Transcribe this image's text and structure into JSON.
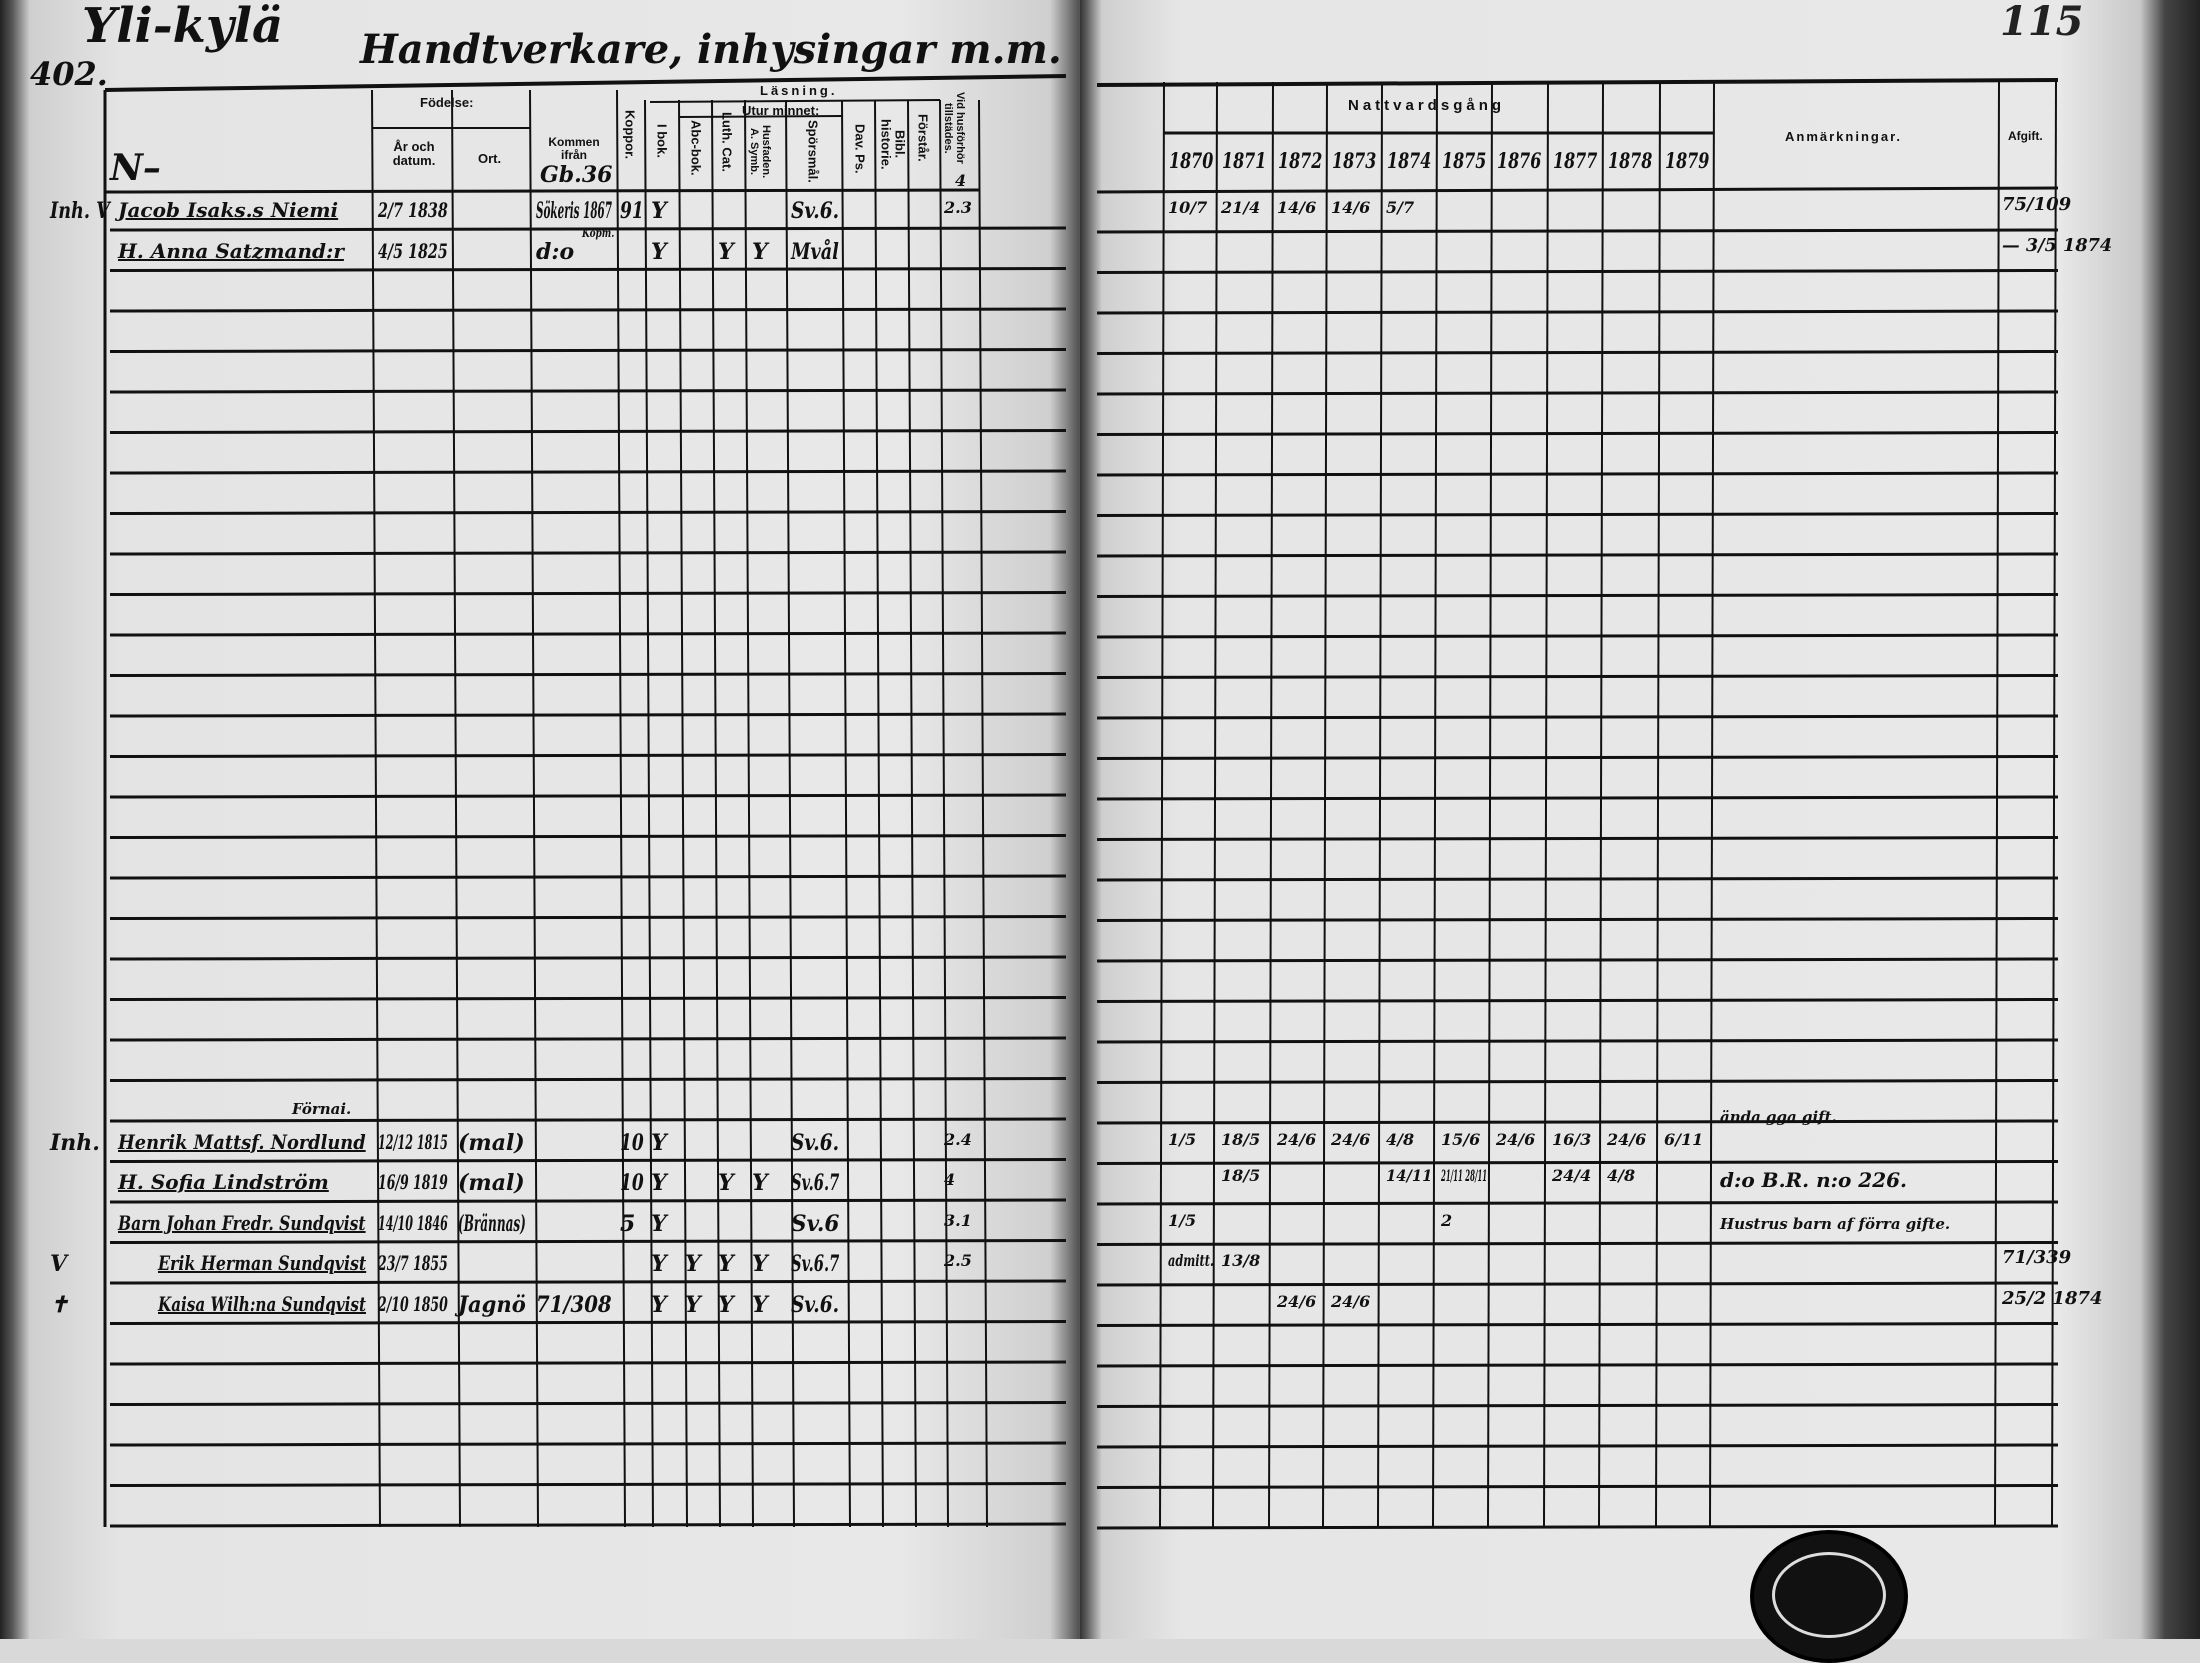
{
  "left_page": {
    "page_number": "402.",
    "village": "Yli-kylä",
    "title": "Handtverkare, inhysingar m.m.",
    "headers": {
      "fodelse": "Födelse:",
      "ar_och_datum": "År och datum.",
      "ort": "Ort.",
      "kommen_ifran": "Kommen ifrån",
      "koppor": "Koppor.",
      "lasning": "Läsning.",
      "utur_minnet": "Utur minnet:",
      "i_bok": "I bok.",
      "abc_bok": "Abc-bok.",
      "luth_cat": "Luth. Cat.",
      "husf_symb": "Husfaden. A. Symb.",
      "sporsmal": "Spörsmål.",
      "dav_ps": "Dav. Ps.",
      "bibl_historie": "Bibl. historie.",
      "forstar": "Förstår.",
      "vid_husforhor": "Vid husförhör tillstädes."
    },
    "section_mark": "N–",
    "section_ref": "Gb.36",
    "section_tillstades": "4",
    "fornamn_note": "Förnai.",
    "entries": [
      {
        "margin": "Inh. V",
        "name": "Jacob Isaks.s Niemi",
        "birth": "2/7 1838",
        "ort": "",
        "kommen": "Sökeris 1867",
        "kommen_note": "Kopm.",
        "koppor": "91",
        "i_bok": "Y",
        "abc": "",
        "luth": "",
        "husf": "",
        "spors": "Sv.6.",
        "tillst": "2.3"
      },
      {
        "margin": "",
        "name": "H. Anna Satzmand:r",
        "birth": "4/5 1825",
        "ort": "",
        "kommen": "d:o",
        "kommen_note": "",
        "koppor": "",
        "i_bok": "Y",
        "abc": "",
        "luth": "Y",
        "husf": "Y",
        "spors": "Mvål",
        "tillst": ""
      },
      {
        "margin": "Inh.",
        "name": "Henrik Mattsf. Nordlund",
        "birth": "12/12 1815",
        "ort": "(mal)",
        "kommen": "",
        "kommen_note": "",
        "koppor": "10",
        "i_bok": "Y",
        "abc": "",
        "luth": "",
        "husf": "",
        "spors": "Sv.6.",
        "tillst": "2.4"
      },
      {
        "margin": "",
        "name": "H. Sofia Lindström",
        "birth": "16/9 1819",
        "ort": "(mal)",
        "kommen": "",
        "kommen_note": "",
        "koppor": "10",
        "i_bok": "Y",
        "abc": "",
        "luth": "Y",
        "husf": "Y",
        "spors": "Sv.6.7",
        "tillst": "4"
      },
      {
        "margin": "",
        "name": "Barn Johan Fredr. Sundqvist",
        "birth": "14/10 1846",
        "ort": "(Brännas)",
        "kommen": "",
        "kommen_note": "",
        "koppor": "5",
        "i_bok": "Y",
        "abc": "",
        "luth": "",
        "husf": "",
        "spors": "Sv.6",
        "tillst": "3.1"
      },
      {
        "margin": "V",
        "name": "Erik Herman Sundqvist",
        "birth": "23/7 1855",
        "ort": "",
        "kommen": "",
        "kommen_note": "",
        "koppor": "",
        "i_bok": "Y",
        "abc": "Y",
        "luth": "Y",
        "husf": "Y",
        "spors": "Sv.6.7",
        "tillst": "2.5"
      },
      {
        "margin": "✝",
        "name": "Kaisa Wilh:na Sundqvist",
        "birth": "2/10 1850",
        "ort": "Jagnö",
        "kommen": "71/308",
        "kommen_note": "",
        "koppor": "",
        "i_bok": "Y",
        "abc": "Y",
        "luth": "Y",
        "husf": "Y",
        "spors": "Sv.6.",
        "tillst": ""
      }
    ]
  },
  "right_page": {
    "corner_number": "115",
    "headers": {
      "nattvardsgang": "Nattvardsgång",
      "years": [
        "1870",
        "1871",
        "1872",
        "1873",
        "1874",
        "1875",
        "1876",
        "1877",
        "1878",
        "1879"
      ],
      "anmarkningar": "Anmärkningar.",
      "afgift": "Afgift."
    },
    "entries": [
      {
        "nattvard": [
          "10/7",
          "21/4",
          "14/6",
          "14/6",
          "5/7",
          "",
          "",
          "",
          "",
          ""
        ],
        "nattvard2": [],
        "remark_above": "",
        "remark": "",
        "afgift": "75/109"
      },
      {
        "nattvard": [
          "",
          "",
          "",
          "",
          "",
          "",
          "",
          "",
          "",
          ""
        ],
        "nattvard2": [],
        "remark_above": "",
        "remark": "",
        "afgift": "— 3/5 1874"
      },
      {
        "nattvard": [
          "1/5",
          "18/5",
          "24/6",
          "24/6",
          "4/8",
          "15/6",
          "24/6",
          "16/3",
          "24/6",
          "6/11"
        ],
        "nattvard2": [
          "",
          "18/5",
          "",
          "",
          "14/11",
          "21/11 28/11",
          "",
          "24/4",
          "4/8",
          ""
        ],
        "remark_above": "ända gga gift.",
        "remark": "d:o   B.R. n:o 226.",
        "afgift": ""
      },
      {
        "nattvard": [
          "",
          "",
          "",
          "",
          "",
          "",
          "",
          "",
          "",
          ""
        ],
        "nattvard2": [],
        "remark_above": "",
        "remark": "",
        "afgift": ""
      },
      {
        "nattvard": [
          "1/5",
          "",
          "",
          "",
          "",
          "2",
          "",
          "",
          "",
          ""
        ],
        "nattvard2": [],
        "remark_above": "",
        "remark": "Hustrus barn af förra gifte.",
        "afgift": ""
      },
      {
        "nattvard": [
          "admitt.",
          "13/8",
          "",
          "",
          "",
          "",
          "",
          "",
          "",
          ""
        ],
        "nattvard2": [],
        "remark_above": "",
        "remark": "",
        "afgift": "71/339"
      },
      {
        "nattvard": [
          "",
          "",
          "24/6",
          "24/6",
          "",
          "",
          "",
          "",
          "",
          ""
        ],
        "nattvard2": [],
        "remark_above": "",
        "remark": "",
        "afgift": "25/2 1874"
      }
    ]
  }
}
